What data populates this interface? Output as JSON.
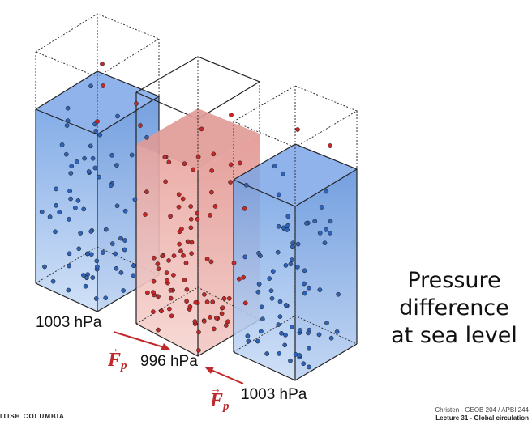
{
  "caption": {
    "line1": "Pressure",
    "line2": "difference",
    "line3": "at sea level"
  },
  "labels": {
    "left_pressure": "1003 hPa",
    "center_pressure": "996 hPa",
    "right_pressure": "1003 hPa",
    "force_symbol": "F",
    "force_subscript": "p"
  },
  "footer": {
    "university": "ITISH COLUMBIA",
    "course": "Christen - GEOB 204 / APBI 244",
    "lecture": "Lecture 31 - Global circulation"
  },
  "colors": {
    "cold_fill": "#8ab2ea",
    "cold_dot": "#2f63b8",
    "warm_fill": "#efb1ac",
    "warm_dot": "#c22a2a",
    "arrow": "#c0282a"
  }
}
